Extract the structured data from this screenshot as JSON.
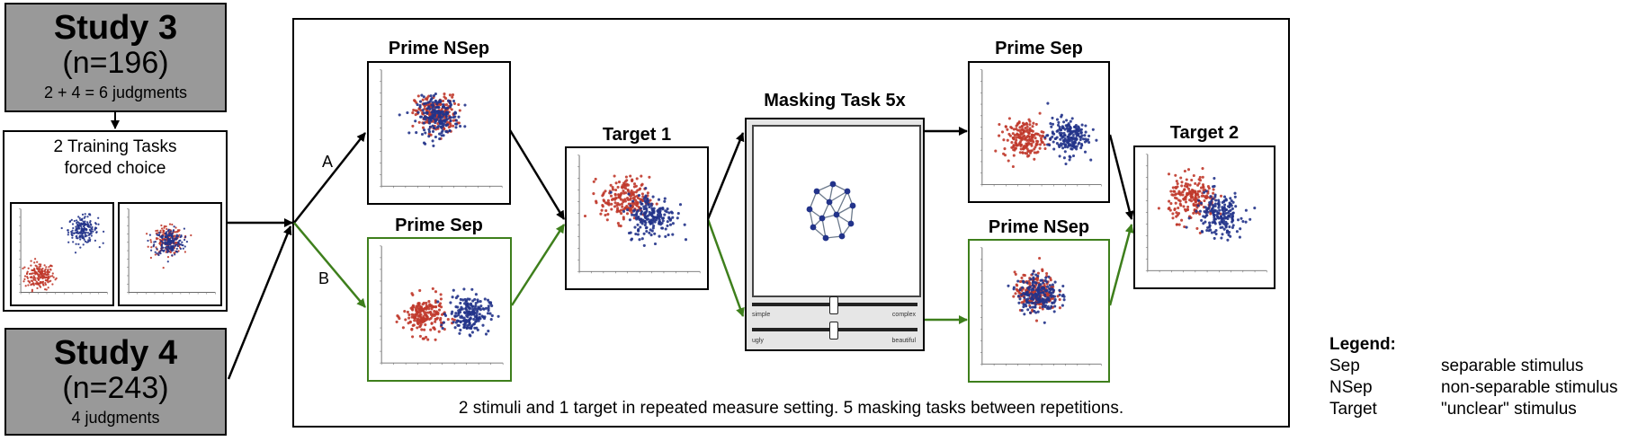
{
  "study3": {
    "title": "Study 3",
    "n": "(n=196)",
    "judgments": "2 + 4 = 6 judgments"
  },
  "study4": {
    "title": "Study 4",
    "n": "(n=243)",
    "judgments": "4 judgments"
  },
  "training": {
    "line1": "2 Training Tasks",
    "line2": "forced choice"
  },
  "path_a": "A",
  "path_b": "B",
  "prime_nsep_top": "Prime NSep",
  "prime_sep_bottom": "Prime Sep",
  "target1": "Target 1",
  "masking": {
    "title": "Masking Task 5x",
    "slider1_left": "simple",
    "slider1_right": "complex",
    "slider2_left": "ugly",
    "slider2_right": "beautiful"
  },
  "prime_sep_top": "Prime Sep",
  "prime_nsep_bottom": "Prime NSep",
  "target2": "Target 2",
  "caption": "2 stimuli and 1 target in repeated measure setting. 5 masking tasks between repetitions.",
  "legend": {
    "title": "Legend:",
    "items": [
      {
        "key": "Sep",
        "value": "separable stimulus"
      },
      {
        "key": "NSep",
        "value": "non-separable stimulus"
      },
      {
        "key": "Target",
        "value": "\"unclear\" stimulus"
      }
    ]
  },
  "colors": {
    "red": "#c0392b",
    "blue": "#22338a",
    "green": "#3e7f1c",
    "grey": "#999999"
  }
}
